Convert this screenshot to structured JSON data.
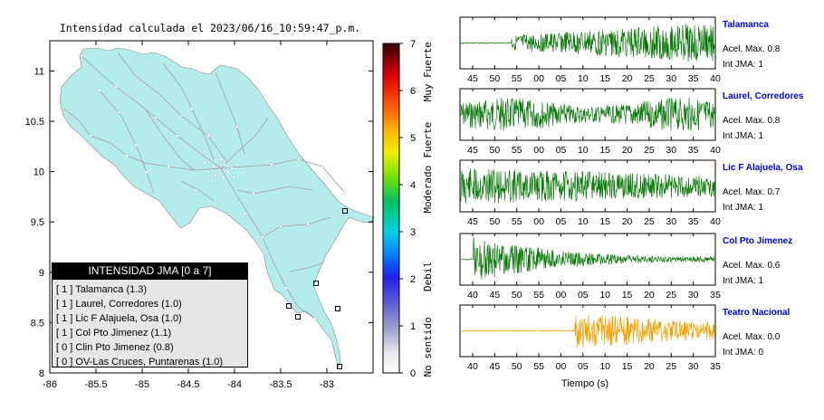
{
  "map": {
    "title": "Intensidad calculada el 2023/06/16_10:59:47_p.m.",
    "x_ticks": [
      "-86",
      "-85.5",
      "-85",
      "-84.5",
      "-84",
      "-83.5",
      "-83"
    ],
    "y_ticks": [
      "8",
      "8.5",
      "9",
      "9.5",
      "10",
      "10.5",
      "11"
    ],
    "xlim": [
      -86,
      -82.5
    ],
    "ylim": [
      8,
      11.3
    ],
    "land_color": "#b4eceb",
    "road_color": "#aaaaaa"
  },
  "colorbar": {
    "ticks": [
      "0",
      "1",
      "2",
      "3",
      "4",
      "5",
      "6",
      "7"
    ],
    "range": [
      0,
      7
    ],
    "labels": [
      {
        "text": "No sentido",
        "value": 0.55
      },
      {
        "text": "Debil",
        "value": 2.05
      },
      {
        "text": "Moderado",
        "value": 3.9
      },
      {
        "text": "Fuerte",
        "value": 4.95
      },
      {
        "text": "Muy Fuerte",
        "value": 6.4
      }
    ]
  },
  "legend": {
    "title": "INTENSIDAD JMA [0 a 7]",
    "items": [
      "[ 1 ]  Talamanca (1.3)",
      "[ 1 ]  Laurel, Corredores (1.0)",
      "[ 1 ]  Lic F Alajuela, Osa (1.0)",
      "[ 1 ]  Col Pto Jimenez (1.1)",
      "[ 0 ]  Clin Pto Jimenez (0.8)",
      "[ 0 ]  OV-Las Cruces, Puntarenas (1.0)"
    ]
  },
  "stations": [
    {
      "name": "Talamanca",
      "aceleracion": "Acel. Max. 0.8",
      "intensidad": "Int JMA: 1",
      "color": "#0b7a0b",
      "ticks": [
        "45",
        "50",
        "55",
        "00",
        "05",
        "10",
        "15",
        "20",
        "25",
        "30",
        "35",
        "40"
      ],
      "onset": 0.2,
      "amp": 0.85,
      "decay": -0.6,
      "seed": 3
    },
    {
      "name": "Laurel, Corredores",
      "aceleracion": "Acel. Max. 0.8",
      "intensidad": "Int JMA: 1",
      "color": "#0b7a0b",
      "ticks": [
        "45",
        "50",
        "55",
        "00",
        "05",
        "10",
        "15",
        "20",
        "25",
        "30",
        "35",
        "40"
      ],
      "onset": 0.0,
      "amp": 0.7,
      "decay": 0.0,
      "seed": 7
    },
    {
      "name": "Lic F Alajuela, Osa",
      "aceleracion": "Acel. Max. 0.7",
      "intensidad": "Int JMA: 1",
      "color": "#0b7a0b",
      "ticks": [
        "45",
        "50",
        "55",
        "00",
        "05",
        "10",
        "15",
        "20",
        "25",
        "30",
        "35",
        "40"
      ],
      "onset": 0.0,
      "amp": 0.8,
      "decay": 0.55,
      "seed": 11
    },
    {
      "name": "Col Pto Jimenez",
      "aceleracion": "Acel. Max. 0.6",
      "intensidad": "Int JMA: 1",
      "color": "#0b7a0b",
      "ticks": [
        "40",
        "45",
        "50",
        "55",
        "00",
        "05",
        "10",
        "15",
        "20",
        "25",
        "30",
        "35"
      ],
      "onset": 0.05,
      "amp": 0.95,
      "decay": 2.6,
      "seed": 19
    },
    {
      "name": "Teatro Nacional",
      "aceleracion": "Acel. Max. 0.0",
      "intensidad": "Int JMA: 0",
      "color": "#f2a000",
      "ticks": [
        "40",
        "45",
        "50",
        "55",
        "00",
        "05",
        "10",
        "15",
        "20",
        "25",
        "30",
        "35"
      ],
      "onset": 0.45,
      "amp": 0.8,
      "decay": 0.8,
      "seed": 23
    }
  ],
  "waveform_xlabel": "Tiempo (s)"
}
